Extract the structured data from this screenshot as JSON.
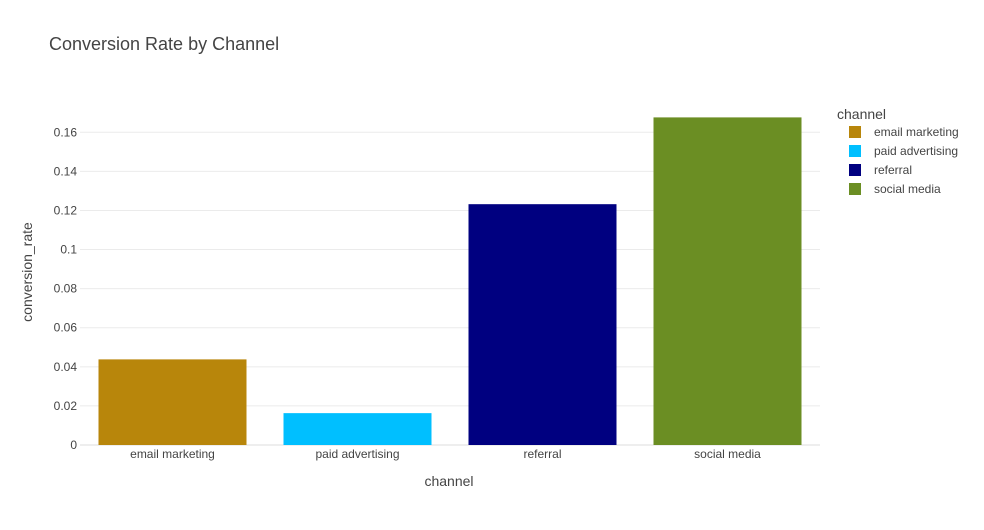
{
  "chart_data": {
    "type": "bar",
    "title": "Conversion Rate by Channel",
    "xlabel": "channel",
    "ylabel": "conversion_rate",
    "categories": [
      "email marketing",
      "paid advertising",
      "referral",
      "social media"
    ],
    "values": [
      0.0438,
      0.0163,
      0.1232,
      0.1676
    ],
    "colors": [
      "#B8860B",
      "#00BFFF",
      "#000080",
      "#6B8E23"
    ],
    "ylim": [
      0,
      0.1765
    ],
    "yticks": [
      0,
      0.02,
      0.04,
      0.06,
      0.08,
      0.1,
      0.12,
      0.14,
      0.16
    ],
    "ytick_labels": [
      "0",
      "0.02",
      "0.04",
      "0.06",
      "0.08",
      "0.1",
      "0.12",
      "0.14",
      "0.16"
    ],
    "grid": true,
    "legend": {
      "title": "channel",
      "placement": "top-right",
      "entries": [
        "email marketing",
        "paid advertising",
        "referral",
        "social media"
      ]
    }
  }
}
